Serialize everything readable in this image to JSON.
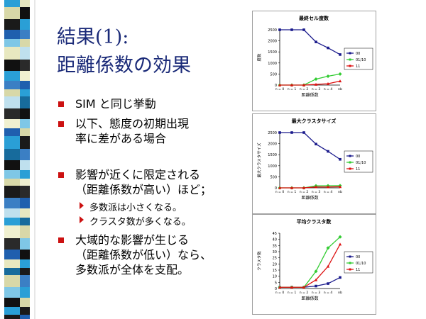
{
  "title": {
    "line1": "結果(1):",
    "line2": "距離係数の効果"
  },
  "bullets": [
    {
      "lines": [
        "SIM と同じ挙動"
      ]
    },
    {
      "lines": [
        "以下、態度の初期出現",
        "率に差がある場合"
      ]
    },
    {
      "lines": [
        "影響が近くに限定される",
        "（距離係数が高い）ほど；"
      ],
      "subs": [
        "多数派は小さくなる。",
        "クラスタ数が多くなる。"
      ]
    },
    {
      "lines": [
        "大域的な影響が生じる",
        "（距離係数が低い）なら、",
        "多数派が全体を支配。"
      ]
    }
  ],
  "colors": {
    "title": "#1a2a78",
    "bullet": "#cc1111",
    "series": [
      "#1a1a8c",
      "#33cc33",
      "#dd1111"
    ]
  },
  "chart_data": [
    {
      "type": "line",
      "title": "最終セル度数",
      "ylabel": "度数",
      "xlabel": "距離係数",
      "categories": [
        "n = 0",
        "n = 1",
        "n = 2",
        "n = 3",
        "n = 4",
        "nb"
      ],
      "ylim": [
        0,
        2500
      ],
      "yticks": [
        0,
        500,
        1000,
        1500,
        2000,
        2500
      ],
      "legend_position": "right",
      "series": [
        {
          "name": "00",
          "values": [
            2500,
            2500,
            2500,
            1950,
            1680,
            1380
          ]
        },
        {
          "name": "01/10",
          "values": [
            0,
            0,
            0,
            270,
            400,
            500
          ]
        },
        {
          "name": "11",
          "values": [
            0,
            0,
            0,
            30,
            60,
            180
          ]
        }
      ]
    },
    {
      "type": "line",
      "title": "最大クラスタサイズ",
      "ylabel": "最大クラスタサイズ",
      "xlabel": "距離係数",
      "categories": [
        "n = 0",
        "n = 1",
        "n = 2",
        "n = 3",
        "n = 4",
        "nb"
      ],
      "ylim": [
        0,
        2500
      ],
      "yticks": [
        0,
        500,
        1000,
        1500,
        2000,
        2500
      ],
      "legend_position": "right",
      "series": [
        {
          "name": "00",
          "values": [
            2500,
            2500,
            2500,
            1980,
            1650,
            1290
          ]
        },
        {
          "name": "01/10",
          "values": [
            0,
            0,
            0,
            90,
            95,
            100
          ]
        },
        {
          "name": "11",
          "values": [
            0,
            0,
            0,
            40,
            40,
            50
          ]
        }
      ]
    },
    {
      "type": "line",
      "title": "平均クラスタ数",
      "ylabel": "クラスタ数",
      "xlabel": "距離係数",
      "categories": [
        "n = 0",
        "n = 1",
        "n = 2",
        "n = 3",
        "n = 4",
        "nb"
      ],
      "ylim": [
        0,
        45
      ],
      "yticks": [
        0,
        5,
        10,
        15,
        20,
        25,
        30,
        35,
        40,
        45
      ],
      "legend_position": "right",
      "series": [
        {
          "name": "00",
          "values": [
            1,
            1,
            1,
            2,
            4,
            9
          ]
        },
        {
          "name": "01/10",
          "values": [
            1,
            1,
            1,
            14,
            33,
            42
          ]
        },
        {
          "name": "11",
          "values": [
            1,
            1,
            1,
            7,
            18,
            36
          ]
        }
      ]
    }
  ]
}
